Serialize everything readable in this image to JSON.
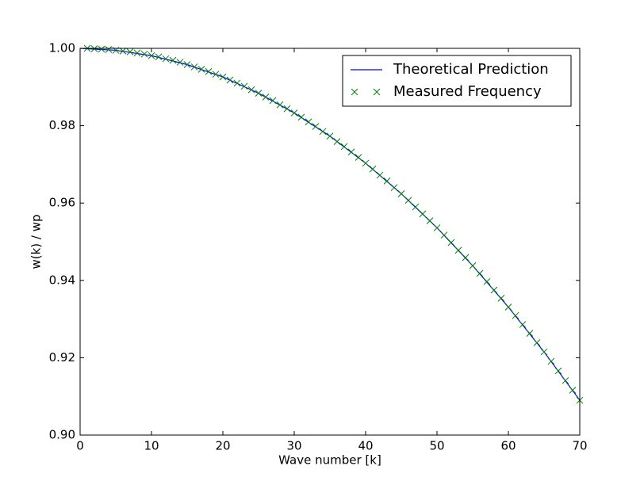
{
  "chart_data": {
    "type": "line",
    "xlabel": "Wave number [k]",
    "ylabel": "w(k) / wp",
    "xlim": [
      0,
      70
    ],
    "ylim": [
      0.9,
      1.0
    ],
    "xticks": [
      0,
      10,
      20,
      30,
      40,
      50,
      60,
      70
    ],
    "yticks": [
      {
        "value": 0.9,
        "label": "0.90"
      },
      0.92,
      0.94,
      0.96,
      0.98,
      {
        "value": 1.0,
        "label": "1.00"
      }
    ],
    "grid": false,
    "legend": "upper right",
    "series": [
      {
        "name": "Theoretical Prediction",
        "color": "#0000ff",
        "style": "line",
        "x": [
          0,
          5,
          10,
          15,
          20,
          25,
          30,
          35,
          40,
          45,
          50,
          55,
          60,
          65,
          70
        ],
        "values": [
          1.0,
          0.9995,
          0.9981,
          0.9958,
          0.9926,
          0.9884,
          0.9833,
          0.9773,
          0.9703,
          0.9624,
          0.9536,
          0.9438,
          0.9331,
          0.9215,
          0.909
        ]
      },
      {
        "name": "Measured Frequency",
        "color": "#008000",
        "style": "marker",
        "x": [
          1,
          2,
          3,
          4,
          5,
          6,
          7,
          8,
          9,
          10,
          11,
          12,
          13,
          14,
          15,
          16,
          17,
          18,
          19,
          20,
          21,
          22,
          23,
          24,
          25,
          26,
          27,
          28,
          29,
          30,
          31,
          32,
          33,
          34,
          35,
          36,
          37,
          38,
          39,
          40,
          41,
          42,
          43,
          44,
          45,
          46,
          47,
          48,
          49,
          50,
          51,
          52,
          53,
          54,
          55,
          56,
          57,
          58,
          59,
          60,
          61,
          62,
          63,
          64,
          65,
          66,
          67,
          68,
          69,
          70
        ],
        "values": [
          1.0,
          0.9999,
          0.9998,
          0.9997,
          0.9995,
          0.9993,
          0.9991,
          0.9988,
          0.9985,
          0.9981,
          0.9978,
          0.9973,
          0.9969,
          0.9964,
          0.9958,
          0.9952,
          0.9946,
          0.994,
          0.9933,
          0.9926,
          0.9918,
          0.991,
          0.9902,
          0.9893,
          0.9884,
          0.9874,
          0.9865,
          0.9854,
          0.9844,
          0.9833,
          0.9822,
          0.981,
          0.9798,
          0.9785,
          0.9773,
          0.9759,
          0.9746,
          0.9732,
          0.9718,
          0.9703,
          0.9688,
          0.9672,
          0.9657,
          0.964,
          0.9624,
          0.9607,
          0.959,
          0.9572,
          0.9554,
          0.9536,
          0.9517,
          0.9498,
          0.9478,
          0.9459,
          0.9438,
          0.9418,
          0.9397,
          0.9375,
          0.9354,
          0.9331,
          0.9309,
          0.9286,
          0.9263,
          0.9239,
          0.9215,
          0.9191,
          0.9166,
          0.9141,
          0.9116,
          0.909
        ]
      }
    ]
  }
}
